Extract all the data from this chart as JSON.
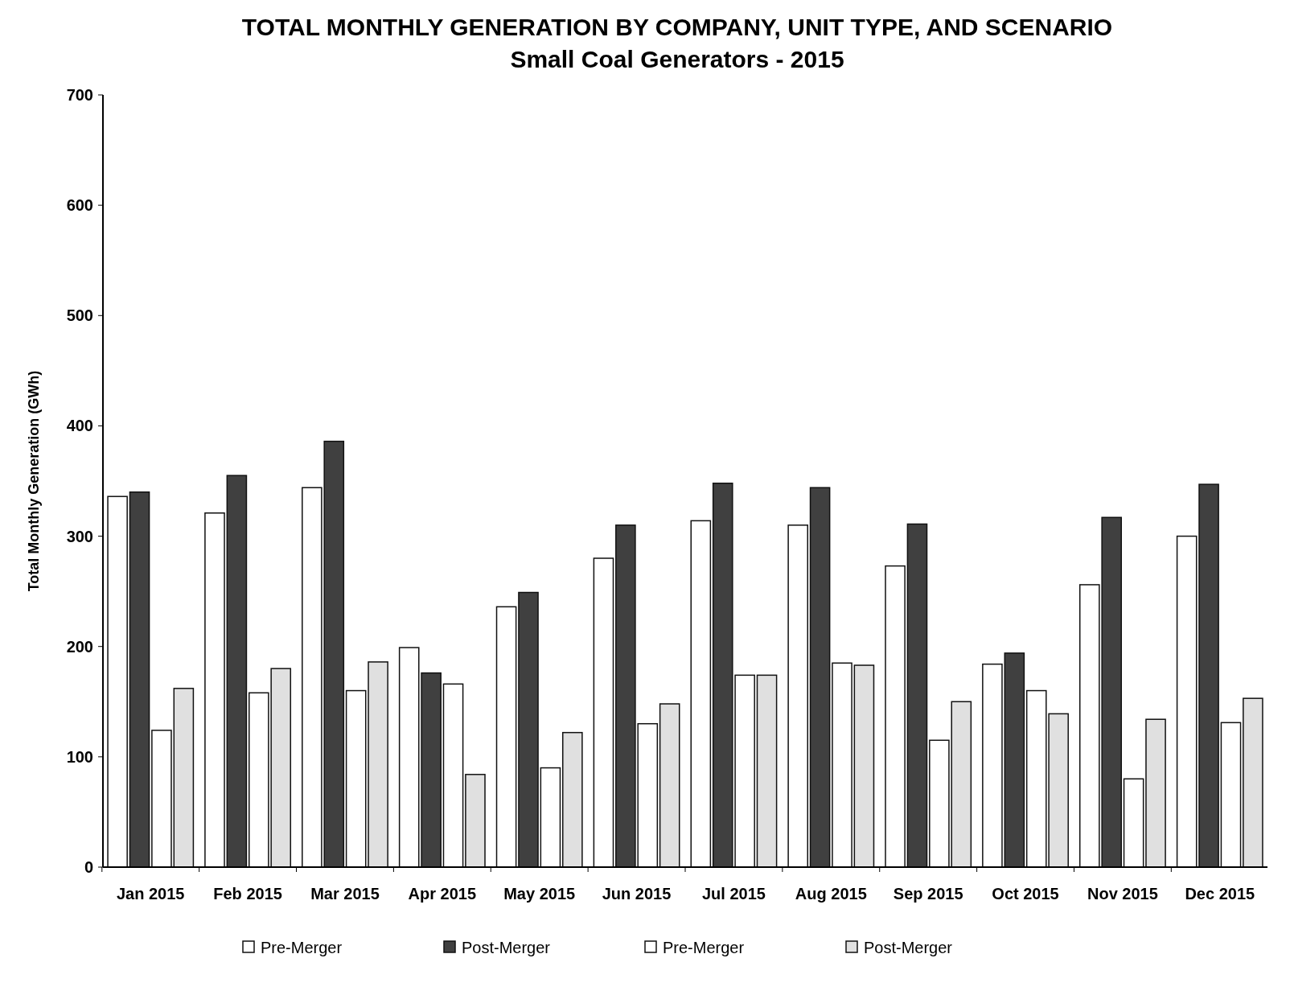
{
  "chart_data": {
    "type": "bar",
    "title": "TOTAL MONTHLY GENERATION BY COMPANY, UNIT TYPE, AND SCENARIO",
    "subtitle": "Small Coal Generators - 2015",
    "ylabel": "Total Monthly Generation (GWh)",
    "categories": [
      "Jan 2015",
      "Feb 2015",
      "Mar 2015",
      "Apr 2015",
      "May 2015",
      "Jun 2015",
      "Jul 2015",
      "Aug 2015",
      "Sep 2015",
      "Oct 2015",
      "Nov 2015",
      "Dec 2015"
    ],
    "series": [
      {
        "name": "Pre-Merger",
        "color": "#ffffff",
        "values": [
          336,
          321,
          344,
          199,
          236,
          280,
          314,
          310,
          273,
          184,
          256,
          300
        ]
      },
      {
        "name": "Post-Merger",
        "color": "#404040",
        "values": [
          340,
          355,
          386,
          176,
          249,
          310,
          348,
          344,
          311,
          194,
          317,
          347
        ]
      },
      {
        "name": "Pre-Merger",
        "color": "#ffffff",
        "values": [
          124,
          158,
          160,
          166,
          90,
          130,
          174,
          185,
          115,
          160,
          80,
          131
        ]
      },
      {
        "name": "Post-Merger",
        "color": "#e0e0e0",
        "values": [
          162,
          180,
          186,
          84,
          122,
          148,
          174,
          183,
          150,
          139,
          134,
          153
        ]
      }
    ],
    "ylim": [
      0,
      700
    ],
    "yticks": [
      0,
      100,
      200,
      300,
      400,
      500,
      600,
      700
    ],
    "grid": false,
    "legend": "bottom"
  }
}
